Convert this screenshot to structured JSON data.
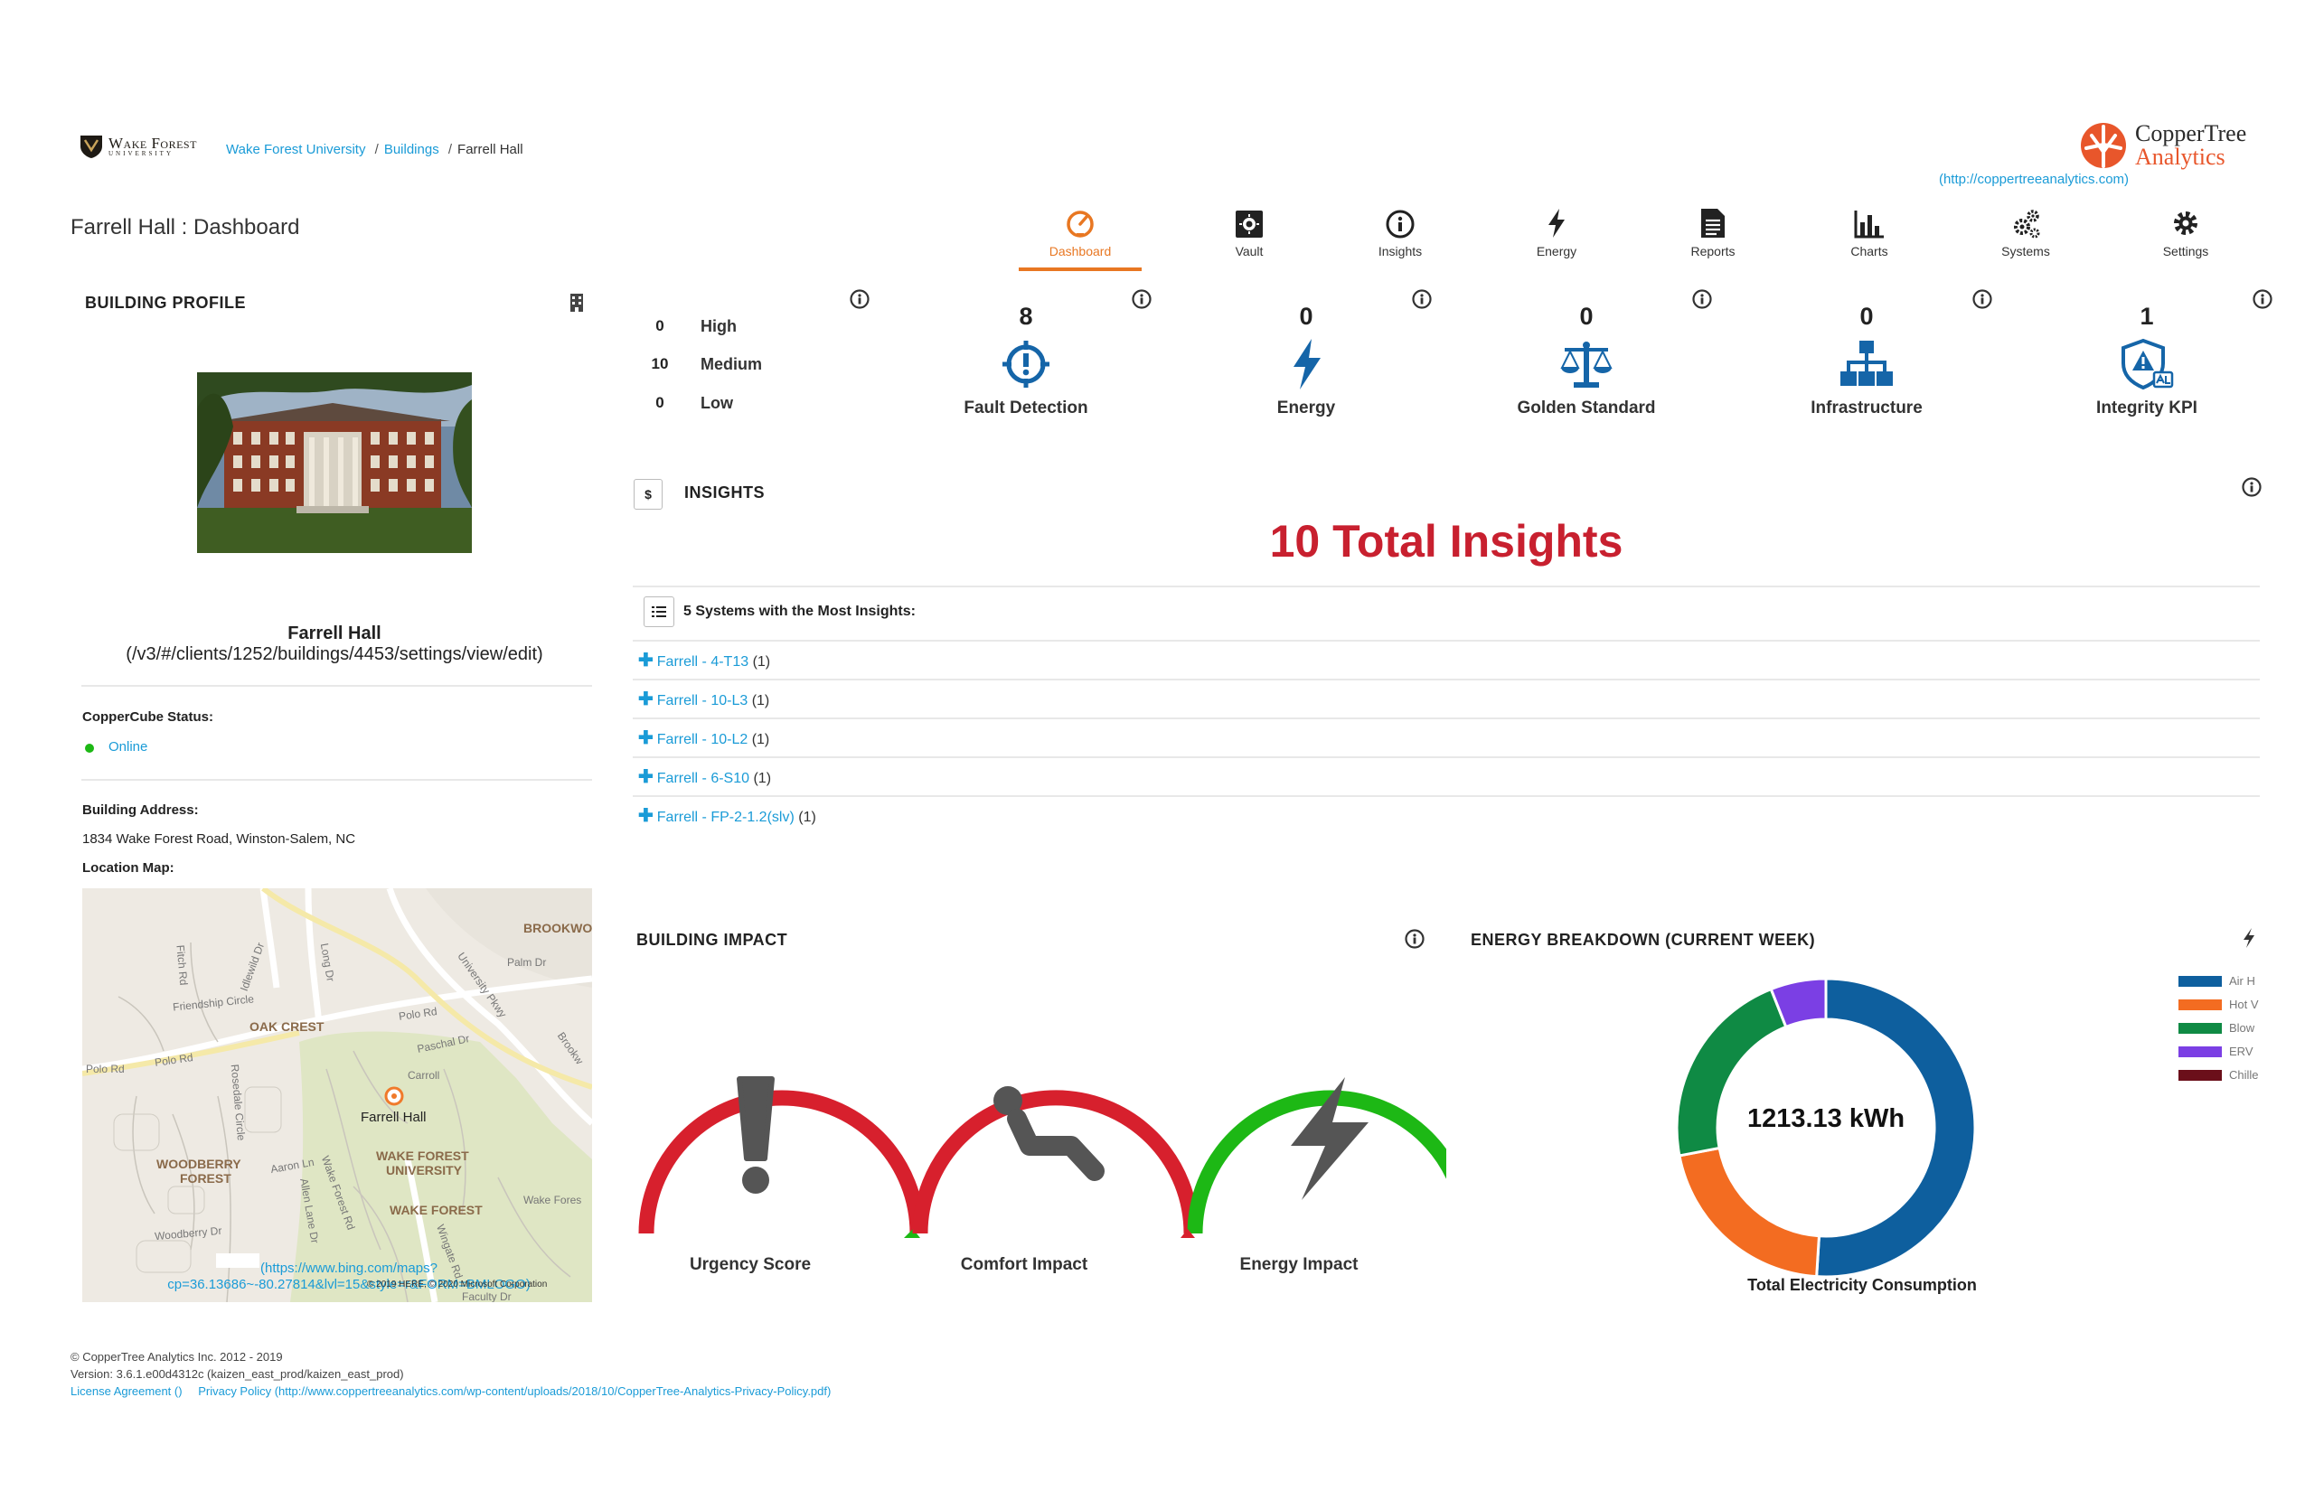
{
  "header": {
    "university_logo_text": "Wake Forest",
    "university_logo_subtext": "UNIVERSITY",
    "breadcrumbs": [
      {
        "label": "Wake Forest University"
      },
      {
        "label": "Buildings"
      },
      {
        "label": "Farrell Hall"
      }
    ],
    "brand_name_top": "CopperTree",
    "brand_name_bottom": "Analytics",
    "brand_link": "(http://coppertreeanalytics.com)",
    "page_title": "Farrell Hall : Dashboard"
  },
  "nav": {
    "items": [
      {
        "label": "Dashboard",
        "icon": "dashboard-gauge-icon",
        "active": true
      },
      {
        "label": "Vault",
        "icon": "vault-icon"
      },
      {
        "label": "Insights",
        "icon": "insights-icon"
      },
      {
        "label": "Energy",
        "icon": "lightning-icon"
      },
      {
        "label": "Reports",
        "icon": "document-icon"
      },
      {
        "label": "Charts",
        "icon": "bar-chart-icon"
      },
      {
        "label": "Systems",
        "icon": "cogs-icon"
      },
      {
        "label": "Settings",
        "icon": "gear-icon"
      }
    ]
  },
  "building_profile": {
    "title": "BUILDING PROFILE",
    "name": "Farrell Hall",
    "link": "(/v3/#/clients/1252/buildings/4453/settings/view/edit)",
    "coppercube_label": "CopperCube Status:",
    "coppercube_status": "Online",
    "address_label": "Building Address:",
    "address": "1834 Wake Forest Road, Winston-Salem, NC",
    "map_label": "Location Map:",
    "map": {
      "labels": {
        "brookwood": "BROOKWO",
        "oak_crest": "OAK CREST",
        "woodberry": "WOODBERRY",
        "forest": "FOREST",
        "wfu_1": "WAKE FOREST",
        "wfu_2": "UNIVERSITY",
        "wake_forest": "WAKE FOREST",
        "farrell_hall": "Farrell Hall",
        "polo_rd": "Polo Rd",
        "polo_rd_2": "Polo Rd",
        "polo_rd_3": "Polo Rd",
        "friendship": "Friendship Circle",
        "palm_dr": "Palm Dr",
        "university_pkwy": "University Pkwy",
        "woodberry_dr": "Woodberry Dr",
        "wake_forest_rd": "Wake Forest Rd",
        "carroll": "Carroll",
        "paschal": "Paschal Dr",
        "idlewild": "Idlewild Dr",
        "fitch": "Fitch Rd",
        "rosedale": "Rosedale Circle",
        "aaron": "Aaron Ln",
        "allen": "Allen Lane Dr",
        "long_dr": "Long Dr",
        "wingate": "Wingate Rd",
        "brooks": "Brookw",
        "faculty": "Faculty Dr",
        "wake_forest_2": "Wake Fores"
      },
      "link_line1": "(https://www.bing.com/maps?",
      "link_line2": "cp=36.13686~-80.27814&lvl=15&style=r&FORM=BMLOGO)",
      "copyright": "© 2019 HERE, © 2020 Microsoft Corporation"
    }
  },
  "severity_counts": [
    {
      "count": "0",
      "label": "High"
    },
    {
      "count": "10",
      "label": "Medium"
    },
    {
      "count": "0",
      "label": "Low"
    }
  ],
  "categories": [
    {
      "count": "8",
      "label": "Fault Detection",
      "icon": "crosshair-alert-icon"
    },
    {
      "count": "0",
      "label": "Energy",
      "icon": "lightning-icon"
    },
    {
      "count": "0",
      "label": "Golden Standard",
      "icon": "balance-scale-icon"
    },
    {
      "count": "0",
      "label": "Infrastructure",
      "icon": "org-chart-icon"
    },
    {
      "count": "1",
      "label": "Integrity KPI",
      "icon": "shield-alert-icon"
    }
  ],
  "insights": {
    "title": "INSIGHTS",
    "badge": "$",
    "total": "10 Total Insights",
    "systems_title": "5 Systems with the Most Insights:",
    "systems": [
      {
        "name": "Farrell - 4-T13",
        "count": "(1)"
      },
      {
        "name": "Farrell - 10-L3",
        "count": "(1)"
      },
      {
        "name": "Farrell - 10-L2",
        "count": "(1)"
      },
      {
        "name": "Farrell - 6-S10",
        "count": "(1)"
      },
      {
        "name": "Farrell - FP-2-1.2(slv)",
        "count": "(1)"
      }
    ]
  },
  "building_impact": {
    "title": "BUILDING IMPACT",
    "gauges": [
      {
        "label": "Urgency Score",
        "icon": "exclamation-icon",
        "color": "#d7202d"
      },
      {
        "label": "Comfort Impact",
        "icon": "reclining-person-icon",
        "color": "#d7202d"
      },
      {
        "label": "Energy Impact",
        "icon": "lightning-icon",
        "color": "#1db815"
      }
    ]
  },
  "energy_breakdown": {
    "title": "ENERGY BREAKDOWN (CURRENT WEEK)",
    "center_value": "1213.13 kWh",
    "caption": "Total Electricity Consumption",
    "legend": [
      {
        "label": "Air H",
        "color": "#0e5f9e"
      },
      {
        "label": "Hot V",
        "color": "#f36c21"
      },
      {
        "label": "Blow",
        "color": "#0f8a44"
      },
      {
        "label": "ERV",
        "color": "#7b3fe4"
      },
      {
        "label": "Chille",
        "color": "#6b0f1a"
      }
    ]
  },
  "chart_data": {
    "type": "pie",
    "title": "ENERGY BREAKDOWN (CURRENT WEEK)",
    "categories": [
      "Air H",
      "Hot V",
      "Blow",
      "ERV",
      "Chille"
    ],
    "values": [
      0.51,
      0.21,
      0.22,
      0.06,
      0.0
    ],
    "colors": [
      "#0e5f9e",
      "#f36c21",
      "#0f8a44",
      "#7b3fe4",
      "#6b0f1a"
    ],
    "center_label": "1213.13 kWh",
    "legend_position": "right"
  },
  "footer": {
    "copyright": "© CopperTree Analytics Inc. 2012 - 2019",
    "version": "Version: 3.6.1.e00d4312c (kaizen_east_prod/kaizen_east_prod)",
    "license": "License Agreement ()",
    "privacy": "Privacy Policy (http://www.coppertreeanalytics.com/wp-content/uploads/2018/10/CopperTree-Analytics-Privacy-Policy.pdf)"
  },
  "colors": {
    "accent_orange": "#e87722",
    "link_blue": "#1a9bd7",
    "icon_blue": "#1565a8",
    "total_red": "#c8202f",
    "online_green": "#1db815"
  }
}
